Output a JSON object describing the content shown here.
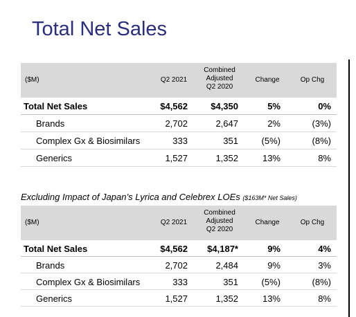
{
  "title": "Total Net Sales",
  "table1": {
    "headers": [
      "($M)",
      "Q2 2021",
      "Combined\nAdjusted\nQ2 2020",
      "Change",
      "Op Chg"
    ],
    "rows": [
      {
        "label": "Total Net Sales",
        "q2_2021": "$4,562",
        "q2_2020": "$4,350",
        "change": "5%",
        "op_chg": "0%"
      },
      {
        "label": "Brands",
        "q2_2021": "2,702",
        "q2_2020": "2,647",
        "change": "2%",
        "op_chg": "(3%)"
      },
      {
        "label": "Complex Gx & Biosimilars",
        "q2_2021": "333",
        "q2_2020": "351",
        "change": "(5%)",
        "op_chg": "(8%)"
      },
      {
        "label": "Generics",
        "q2_2021": "1,527",
        "q2_2020": "1,352",
        "change": "13%",
        "op_chg": "8%"
      }
    ]
  },
  "subtitle": {
    "main": "Excluding Impact of Japan’s Lyrica and Celebrex LOEs",
    "note": "($163M* Net Sales)"
  },
  "table2": {
    "headers": [
      "($M)",
      "Q2 2021",
      "Combined\nAdjusted\nQ2 2020",
      "Change",
      "Op Chg"
    ],
    "rows": [
      {
        "label": "Total Net Sales",
        "q2_2021": "$4,562",
        "q2_2020": "$4,187*",
        "change": "9%",
        "op_chg": "4%"
      },
      {
        "label": "Brands",
        "q2_2021": "2,702",
        "q2_2020": "2,484",
        "change": "9%",
        "op_chg": "3%"
      },
      {
        "label": "Complex Gx & Biosimilars",
        "q2_2021": "333",
        "q2_2020": "351",
        "change": "(5%)",
        "op_chg": "(8%)"
      },
      {
        "label": "Generics",
        "q2_2021": "1,527",
        "q2_2020": "1,352",
        "change": "13%",
        "op_chg": "8%"
      }
    ]
  }
}
